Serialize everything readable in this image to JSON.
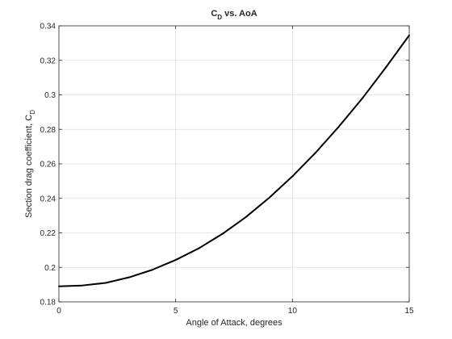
{
  "chart_data": {
    "type": "line",
    "title_main": "C",
    "title_sub": "D",
    "title_rest": " vs. AoA",
    "xlabel": "Angle of Attack, degrees",
    "ylabel_main": "Section drag coefficient, C",
    "ylabel_sub": "D",
    "xlim": [
      0,
      15
    ],
    "ylim": [
      0.18,
      0.34
    ],
    "xticks": [
      0,
      5,
      10,
      15
    ],
    "xtick_labels": [
      "0",
      "5",
      "10",
      "15"
    ],
    "yticks": [
      0.18,
      0.2,
      0.22,
      0.24,
      0.26,
      0.28,
      0.3,
      0.32,
      0.34
    ],
    "ytick_labels": [
      "0.18",
      "0.2",
      "0.22",
      "0.24",
      "0.26",
      "0.28",
      "0.3",
      "0.32",
      "0.34"
    ],
    "grid": true,
    "series": [
      {
        "color": "#000000",
        "x": [
          0,
          1,
          2,
          3,
          4,
          5,
          6,
          7,
          8,
          9,
          10,
          11,
          12,
          13,
          14,
          15
        ],
        "y": [
          0.189,
          0.1895,
          0.191,
          0.1942,
          0.1986,
          0.2043,
          0.2111,
          0.2194,
          0.2291,
          0.2403,
          0.2528,
          0.2666,
          0.2818,
          0.2981,
          0.3159,
          0.3345
        ]
      }
    ]
  }
}
